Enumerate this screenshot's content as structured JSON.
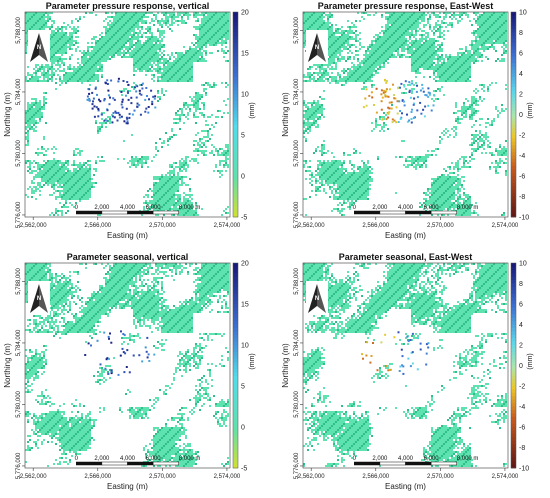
{
  "figure": {
    "panels": [
      {
        "title": "Parameter pressure response, vertical",
        "colorbar": {
          "scale": "sequential",
          "ticks": [
            "20",
            "15",
            "10",
            "5",
            "0",
            "-5"
          ],
          "min": -5,
          "max": 20,
          "unit": "(mm)"
        },
        "hotspot": "blue"
      },
      {
        "title": "Parameter pressure response, East-West",
        "colorbar": {
          "scale": "diverging",
          "ticks": [
            "10",
            "8",
            "6",
            "4",
            "2",
            "0",
            "-2",
            "-4",
            "-6",
            "-8",
            "-10"
          ],
          "min": -10,
          "max": 10,
          "unit": "(mm)"
        },
        "hotspot": "mixed"
      },
      {
        "title": "Parameter seasonal, vertical",
        "colorbar": {
          "scale": "sequential",
          "ticks": [
            "20",
            "15",
            "10",
            "5",
            "0",
            "-5"
          ],
          "min": -5,
          "max": 20,
          "unit": "(mm)"
        },
        "hotspot": "blue-sparse"
      },
      {
        "title": "Parameter seasonal, East-West",
        "colorbar": {
          "scale": "diverging",
          "ticks": [
            "10",
            "8",
            "6",
            "4",
            "2",
            "0",
            "-2",
            "-4",
            "-6",
            "-8",
            "-10"
          ],
          "min": -10,
          "max": 10,
          "unit": "(mm)"
        },
        "hotspot": "mixed-sparse"
      }
    ],
    "x_axis": {
      "label": "Easting (m)",
      "ticks": [
        "2,562,000",
        "2,566,000",
        "2,570,000",
        "2,574,000"
      ]
    },
    "y_axis": {
      "label": "Northing (m)",
      "ticks": [
        "5,788,000",
        "5,784,000",
        "5,780,000",
        "5,776,000"
      ]
    },
    "scale_bar": {
      "ticks": [
        "0",
        "2,000",
        "4,000",
        "6,000",
        "8,000 m"
      ]
    },
    "north_arrow": {
      "label": "N",
      "icon": "north-arrow-icon"
    },
    "colors": {
      "base_points": "#5ee3b0",
      "base_grid": "#2fbf8a"
    }
  }
}
